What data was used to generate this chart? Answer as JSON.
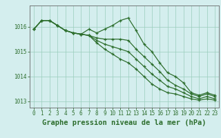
{
  "title": "Graphe pression niveau de la mer (hPa)",
  "bg_color": "#d4eeee",
  "grid_color": "#99ccbb",
  "line_color": "#2d6e2d",
  "xlim": [
    -0.5,
    23.5
  ],
  "ylim": [
    1012.75,
    1016.85
  ],
  "yticks": [
    1013,
    1014,
    1015,
    1016
  ],
  "xticks": [
    0,
    1,
    2,
    3,
    4,
    5,
    6,
    7,
    8,
    9,
    10,
    11,
    12,
    13,
    14,
    15,
    16,
    17,
    18,
    19,
    20,
    21,
    22,
    23
  ],
  "series": [
    [
      1015.9,
      1016.25,
      1016.25,
      1016.05,
      1015.85,
      1015.75,
      1015.7,
      1015.9,
      1015.75,
      1015.9,
      1016.05,
      1016.25,
      1016.35,
      1015.85,
      1015.3,
      1015.0,
      1014.55,
      1014.15,
      1014.0,
      1013.75,
      1013.35,
      1013.25,
      1013.35,
      1013.25
    ],
    [
      1015.9,
      1016.25,
      1016.25,
      1016.05,
      1015.85,
      1015.75,
      1015.7,
      1015.65,
      1015.55,
      1015.5,
      1015.5,
      1015.5,
      1015.45,
      1015.1,
      1014.8,
      1014.5,
      1014.2,
      1013.85,
      1013.65,
      1013.5,
      1013.3,
      1013.2,
      1013.3,
      1013.2
    ],
    [
      1015.9,
      1016.25,
      1016.25,
      1016.05,
      1015.85,
      1015.75,
      1015.7,
      1015.65,
      1015.45,
      1015.3,
      1015.2,
      1015.1,
      1015.0,
      1014.7,
      1014.4,
      1014.1,
      1013.85,
      1013.6,
      1013.5,
      1013.35,
      1013.2,
      1013.1,
      1013.2,
      1013.1
    ],
    [
      1015.9,
      1016.25,
      1016.25,
      1016.05,
      1015.85,
      1015.75,
      1015.7,
      1015.65,
      1015.35,
      1015.1,
      1014.9,
      1014.7,
      1014.55,
      1014.3,
      1014.0,
      1013.7,
      1013.5,
      1013.35,
      1013.3,
      1013.2,
      1013.1,
      1013.05,
      1013.1,
      1013.05
    ]
  ],
  "marker": "+",
  "markersize": 3.5,
  "linewidth": 0.9,
  "title_fontsize": 7.5,
  "tick_fontsize": 5.5,
  "tick_color": "#2d6e2d",
  "axis_color": "#2d6e2d",
  "spine_color": "#666666"
}
